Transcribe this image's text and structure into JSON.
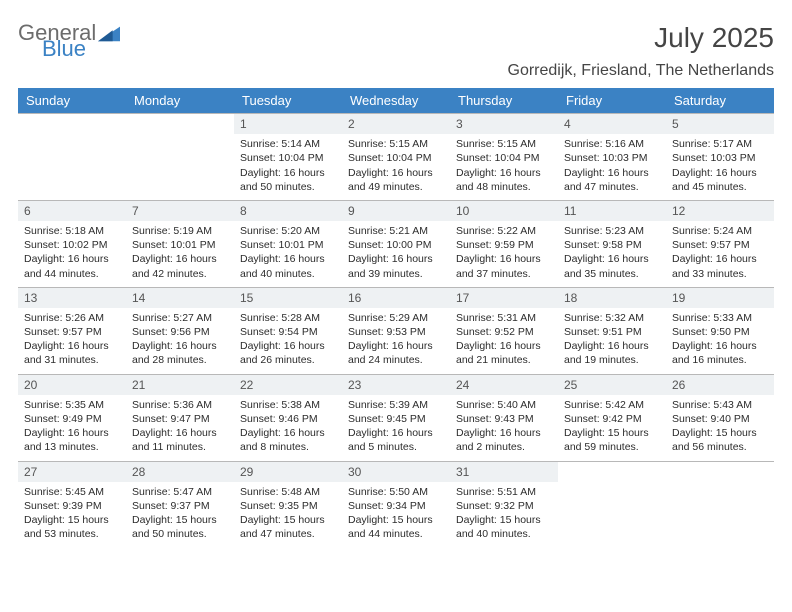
{
  "brand": {
    "word1": "General",
    "word2": "Blue",
    "color1": "#6c6c6c",
    "color2": "#3b82c4"
  },
  "header": {
    "month_year": "July 2025",
    "location": "Gorredijk, Friesland, The Netherlands"
  },
  "style": {
    "header_bg": "#3b82c4",
    "header_fg": "#ffffff",
    "daynum_bg": "#eef1f3",
    "row_border": "#b8b8b8",
    "text_color": "#2c2c2c",
    "page_bg": "#ffffff",
    "header_fontsize": 13,
    "cell_fontsize": 10.5,
    "title_fontsize": 28,
    "location_fontsize": 16
  },
  "calendar": {
    "type": "table",
    "days_of_week": [
      "Sunday",
      "Monday",
      "Tuesday",
      "Wednesday",
      "Thursday",
      "Friday",
      "Saturday"
    ],
    "weeks": [
      [
        null,
        null,
        {
          "n": "1",
          "sunrise": "5:14 AM",
          "sunset": "10:04 PM",
          "daylight": "16 hours and 50 minutes."
        },
        {
          "n": "2",
          "sunrise": "5:15 AM",
          "sunset": "10:04 PM",
          "daylight": "16 hours and 49 minutes."
        },
        {
          "n": "3",
          "sunrise": "5:15 AM",
          "sunset": "10:04 PM",
          "daylight": "16 hours and 48 minutes."
        },
        {
          "n": "4",
          "sunrise": "5:16 AM",
          "sunset": "10:03 PM",
          "daylight": "16 hours and 47 minutes."
        },
        {
          "n": "5",
          "sunrise": "5:17 AM",
          "sunset": "10:03 PM",
          "daylight": "16 hours and 45 minutes."
        }
      ],
      [
        {
          "n": "6",
          "sunrise": "5:18 AM",
          "sunset": "10:02 PM",
          "daylight": "16 hours and 44 minutes."
        },
        {
          "n": "7",
          "sunrise": "5:19 AM",
          "sunset": "10:01 PM",
          "daylight": "16 hours and 42 minutes."
        },
        {
          "n": "8",
          "sunrise": "5:20 AM",
          "sunset": "10:01 PM",
          "daylight": "16 hours and 40 minutes."
        },
        {
          "n": "9",
          "sunrise": "5:21 AM",
          "sunset": "10:00 PM",
          "daylight": "16 hours and 39 minutes."
        },
        {
          "n": "10",
          "sunrise": "5:22 AM",
          "sunset": "9:59 PM",
          "daylight": "16 hours and 37 minutes."
        },
        {
          "n": "11",
          "sunrise": "5:23 AM",
          "sunset": "9:58 PM",
          "daylight": "16 hours and 35 minutes."
        },
        {
          "n": "12",
          "sunrise": "5:24 AM",
          "sunset": "9:57 PM",
          "daylight": "16 hours and 33 minutes."
        }
      ],
      [
        {
          "n": "13",
          "sunrise": "5:26 AM",
          "sunset": "9:57 PM",
          "daylight": "16 hours and 31 minutes."
        },
        {
          "n": "14",
          "sunrise": "5:27 AM",
          "sunset": "9:56 PM",
          "daylight": "16 hours and 28 minutes."
        },
        {
          "n": "15",
          "sunrise": "5:28 AM",
          "sunset": "9:54 PM",
          "daylight": "16 hours and 26 minutes."
        },
        {
          "n": "16",
          "sunrise": "5:29 AM",
          "sunset": "9:53 PM",
          "daylight": "16 hours and 24 minutes."
        },
        {
          "n": "17",
          "sunrise": "5:31 AM",
          "sunset": "9:52 PM",
          "daylight": "16 hours and 21 minutes."
        },
        {
          "n": "18",
          "sunrise": "5:32 AM",
          "sunset": "9:51 PM",
          "daylight": "16 hours and 19 minutes."
        },
        {
          "n": "19",
          "sunrise": "5:33 AM",
          "sunset": "9:50 PM",
          "daylight": "16 hours and 16 minutes."
        }
      ],
      [
        {
          "n": "20",
          "sunrise": "5:35 AM",
          "sunset": "9:49 PM",
          "daylight": "16 hours and 13 minutes."
        },
        {
          "n": "21",
          "sunrise": "5:36 AM",
          "sunset": "9:47 PM",
          "daylight": "16 hours and 11 minutes."
        },
        {
          "n": "22",
          "sunrise": "5:38 AM",
          "sunset": "9:46 PM",
          "daylight": "16 hours and 8 minutes."
        },
        {
          "n": "23",
          "sunrise": "5:39 AM",
          "sunset": "9:45 PM",
          "daylight": "16 hours and 5 minutes."
        },
        {
          "n": "24",
          "sunrise": "5:40 AM",
          "sunset": "9:43 PM",
          "daylight": "16 hours and 2 minutes."
        },
        {
          "n": "25",
          "sunrise": "5:42 AM",
          "sunset": "9:42 PM",
          "daylight": "15 hours and 59 minutes."
        },
        {
          "n": "26",
          "sunrise": "5:43 AM",
          "sunset": "9:40 PM",
          "daylight": "15 hours and 56 minutes."
        }
      ],
      [
        {
          "n": "27",
          "sunrise": "5:45 AM",
          "sunset": "9:39 PM",
          "daylight": "15 hours and 53 minutes."
        },
        {
          "n": "28",
          "sunrise": "5:47 AM",
          "sunset": "9:37 PM",
          "daylight": "15 hours and 50 minutes."
        },
        {
          "n": "29",
          "sunrise": "5:48 AM",
          "sunset": "9:35 PM",
          "daylight": "15 hours and 47 minutes."
        },
        {
          "n": "30",
          "sunrise": "5:50 AM",
          "sunset": "9:34 PM",
          "daylight": "15 hours and 44 minutes."
        },
        {
          "n": "31",
          "sunrise": "5:51 AM",
          "sunset": "9:32 PM",
          "daylight": "15 hours and 40 minutes."
        },
        null,
        null
      ]
    ],
    "labels": {
      "sunrise": "Sunrise:",
      "sunset": "Sunset:",
      "daylight": "Daylight:"
    }
  }
}
